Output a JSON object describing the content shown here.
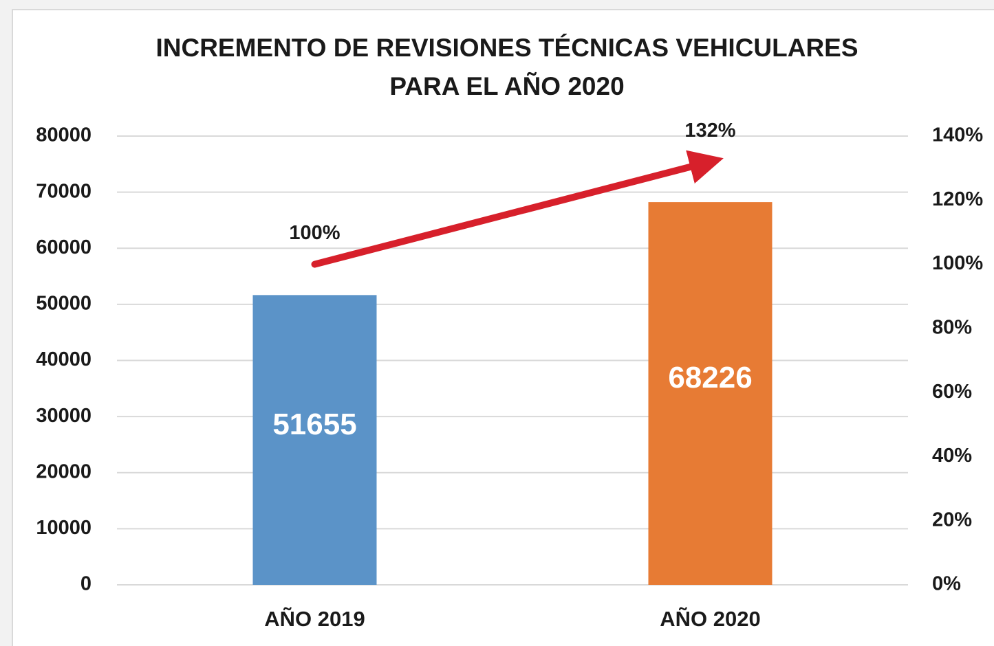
{
  "chart_data": {
    "type": "bar",
    "title": [
      "INCREMENTO DE REVISIONES TÉCNICAS VEHICULARES",
      "PARA EL AÑO 2020"
    ],
    "categories": [
      "AÑO 2019",
      "AÑO 2020"
    ],
    "values": [
      51655,
      68226
    ],
    "colors": [
      "#5b93c8",
      "#e77b34"
    ],
    "ylim": [
      0,
      80000
    ],
    "yticks": [
      0,
      10000,
      20000,
      30000,
      40000,
      50000,
      60000,
      70000,
      80000
    ],
    "y2lim": [
      0,
      140
    ],
    "y2ticks": [
      {
        "value": 0,
        "label": "0%"
      },
      {
        "value": 20,
        "label": "20%"
      },
      {
        "value": 40,
        "label": "40%"
      },
      {
        "value": 60,
        "label": "60%"
      },
      {
        "value": 80,
        "label": "80%"
      },
      {
        "value": 100,
        "label": "100%"
      },
      {
        "value": 120,
        "label": "120%"
      },
      {
        "value": 140,
        "label": "140%"
      }
    ],
    "grid": true,
    "growth": {
      "type": "arrow",
      "axis": "y2",
      "values": [
        100,
        132
      ],
      "value_labels": [
        "100%",
        "132%"
      ],
      "color": "#d7202b"
    }
  }
}
